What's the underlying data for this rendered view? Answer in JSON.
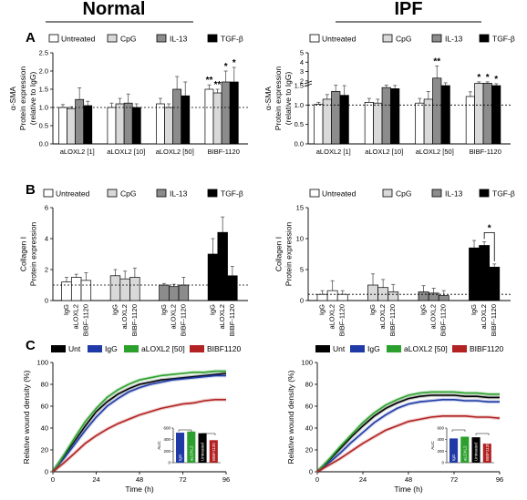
{
  "headers": {
    "normal": "Normal",
    "ipf": "IPF"
  },
  "panels": {
    "a": "A",
    "b": "B",
    "c": "C"
  },
  "legend_ab": [
    {
      "label": "Untreated",
      "color": "#ffffff"
    },
    {
      "label": "CpG",
      "color": "#d9d9d9"
    },
    {
      "label": "IL-13",
      "color": "#8c8c8c"
    },
    {
      "label": "TGF-β",
      "color": "#000000"
    }
  ],
  "legend_c": [
    {
      "label": "Unt",
      "color": "#000000"
    },
    {
      "label": "IgG",
      "color": "#1f3aa6"
    },
    {
      "label": "aLOXL2 [50]",
      "color": "#2ca02c"
    },
    {
      "label": "BIBF1120",
      "color": "#b22222"
    }
  ],
  "chart_data": [
    {
      "id": "a_normal",
      "type": "bar",
      "ylabel_lines": [
        "α-SMA",
        "Protein expression",
        "(relative to IgG)"
      ],
      "ylim": [
        0,
        2.5
      ],
      "yticks": [
        "0.0",
        "0.5",
        "1.0",
        "1.5",
        "2.0",
        "2.5"
      ],
      "categories": [
        "aLOXL2 [1]",
        "aLOXL2 [10]",
        "aLOXL2 [50]",
        "BIBF-1120"
      ],
      "series": [
        {
          "name": "Untreated",
          "values": [
            1.0,
            1.0,
            1.1,
            1.5
          ],
          "err": [
            0.08,
            0.12,
            0.15,
            0.12
          ]
        },
        {
          "name": "CpG",
          "values": [
            0.97,
            1.1,
            1.0,
            1.4
          ],
          "err": [
            0.05,
            0.15,
            0.1,
            0.1
          ]
        },
        {
          "name": "IL-13",
          "values": [
            1.22,
            1.12,
            1.5,
            1.7
          ],
          "err": [
            0.32,
            0.25,
            0.35,
            0.3
          ]
        },
        {
          "name": "TGF-β",
          "values": [
            1.05,
            1.0,
            1.32,
            1.7
          ],
          "err": [
            0.12,
            0.1,
            0.38,
            0.4
          ]
        }
      ],
      "stars": [
        {
          "cat": 3,
          "series": 0,
          "text": "**"
        },
        {
          "cat": 3,
          "series": 1,
          "text": "**"
        },
        {
          "cat": 3,
          "series": 2,
          "text": "*"
        },
        {
          "cat": 3,
          "series": 3,
          "text": "*"
        }
      ],
      "refline": 1.0
    },
    {
      "id": "a_ipf",
      "type": "bar",
      "ylabel_lines": [
        "α-SMA",
        "Protein expression",
        "(relative to IgG)"
      ],
      "ylim": [
        0,
        5
      ],
      "axis_break": 1.5,
      "yticks": [
        "0.0",
        "0.5",
        "1.0",
        "1.5",
        "2",
        "3",
        "4",
        "5"
      ],
      "categories": [
        "aLOXL2 [1]",
        "aLOXL2 [10]",
        "aLOXL2 [50]",
        "BIBF-1120"
      ],
      "series": [
        {
          "name": "Untreated",
          "values": [
            1.02,
            1.07,
            1.05,
            1.22
          ],
          "err": [
            0.05,
            0.1,
            0.12,
            0.12
          ]
        },
        {
          "name": "CpG",
          "values": [
            1.15,
            1.05,
            1.15,
            1.75
          ],
          "err": [
            0.12,
            0.1,
            0.2,
            0.15
          ]
        },
        {
          "name": "IL-13",
          "values": [
            1.35,
            1.45,
            2.3,
            1.75
          ],
          "err": [
            0.2,
            0.1,
            1.3,
            0.15
          ]
        },
        {
          "name": "TGF-β",
          "values": [
            1.25,
            1.42,
            1.5,
            1.5
          ],
          "err": [
            0.25,
            0.1,
            0.3,
            0.2
          ]
        }
      ],
      "stars": [
        {
          "cat": 2,
          "series": 2,
          "text": "**"
        },
        {
          "cat": 3,
          "series": 1,
          "text": "*"
        },
        {
          "cat": 3,
          "series": 2,
          "text": "*"
        },
        {
          "cat": 3,
          "series": 3,
          "text": "*"
        }
      ],
      "refline": 1.0
    },
    {
      "id": "b_normal",
      "type": "bar",
      "ylabel_lines": [
        "Collagen I",
        "Protein expression"
      ],
      "ylim": [
        0,
        6
      ],
      "yticks": [
        "0",
        "2",
        "4",
        "6"
      ],
      "groups": [
        "Untreated",
        "CpG",
        "IL-13",
        "TGF-β"
      ],
      "categories": [
        "IgG",
        "aLOXL2",
        "BIBF-1120"
      ],
      "values": [
        [
          1.2,
          1.5,
          1.3
        ],
        [
          1.6,
          1.4,
          1.5
        ],
        [
          1.0,
          0.9,
          1.0
        ],
        [
          3.0,
          4.4,
          1.6
        ]
      ],
      "err": [
        [
          0.3,
          0.2,
          0.5
        ],
        [
          0.4,
          0.5,
          0.6
        ],
        [
          0.1,
          0.15,
          0.5
        ],
        [
          1.0,
          1.0,
          0.6
        ]
      ],
      "refline": 1.0
    },
    {
      "id": "b_ipf",
      "type": "bar",
      "ylabel_lines": [
        "Collagen I",
        "Protein expression"
      ],
      "ylim": [
        0,
        15
      ],
      "yticks": [
        "0",
        "5",
        "10",
        "15"
      ],
      "groups": [
        "Untreated",
        "CpG",
        "IL-13",
        "TGF-β"
      ],
      "categories": [
        "IgG",
        "aLOXL2",
        "BIBF-1120"
      ],
      "values": [
        [
          1.0,
          1.6,
          1.0
        ],
        [
          2.5,
          2.1,
          1.4
        ],
        [
          1.4,
          1.2,
          0.8
        ],
        [
          8.5,
          8.9,
          5.4
        ]
      ],
      "err": [
        [
          0.6,
          1.6,
          0.6
        ],
        [
          1.8,
          1.3,
          1.2
        ],
        [
          1.0,
          0.8,
          0.8
        ],
        [
          1.2,
          0.6,
          0.5
        ]
      ],
      "bracket": {
        "from": 1,
        "to": 2,
        "group": 3,
        "text": "*"
      },
      "refline": 1.0
    },
    {
      "id": "c_normal",
      "type": "line",
      "xlabel": "Time (h)",
      "ylabel": "Relative wound density (%)",
      "xlim": [
        0,
        96
      ],
      "ylim": [
        0,
        100
      ],
      "xticks": [
        "0",
        "24",
        "48",
        "72",
        "96"
      ],
      "yticks": [
        "0",
        "20",
        "40",
        "60",
        "80",
        "100"
      ],
      "series": [
        {
          "name": "Unt",
          "color": "#000000",
          "x": [
            0,
            6,
            12,
            18,
            24,
            30,
            36,
            42,
            48,
            54,
            60,
            66,
            72,
            78,
            84,
            90,
            96
          ],
          "y": [
            0,
            14,
            28,
            42,
            55,
            64,
            71,
            76,
            80,
            82,
            84,
            85,
            86,
            87,
            88,
            89,
            90
          ]
        },
        {
          "name": "IgG",
          "color": "#1f3aa6",
          "x": [
            0,
            6,
            12,
            18,
            24,
            30,
            36,
            42,
            48,
            54,
            60,
            66,
            72,
            78,
            84,
            90,
            96
          ],
          "y": [
            0,
            12,
            25,
            38,
            50,
            60,
            67,
            73,
            77,
            80,
            82,
            84,
            85,
            86,
            87,
            88,
            88
          ]
        },
        {
          "name": "aLOXL2 [50]",
          "color": "#2ca02c",
          "x": [
            0,
            6,
            12,
            18,
            24,
            30,
            36,
            42,
            48,
            54,
            60,
            66,
            72,
            78,
            84,
            90,
            96
          ],
          "y": [
            0,
            15,
            31,
            46,
            58,
            68,
            75,
            80,
            84,
            86,
            88,
            89,
            90,
            91,
            91,
            92,
            92
          ]
        },
        {
          "name": "BIBF1120",
          "color": "#b22222",
          "x": [
            0,
            6,
            12,
            18,
            24,
            30,
            36,
            42,
            48,
            54,
            60,
            66,
            72,
            78,
            84,
            90,
            96
          ],
          "y": [
            0,
            8,
            17,
            26,
            33,
            39,
            44,
            48,
            52,
            55,
            58,
            60,
            62,
            63,
            65,
            66,
            66
          ]
        }
      ],
      "inset": {
        "ylabel": "AUC",
        "yticks": [
          "0",
          "200",
          "400",
          "600"
        ],
        "ymax": 600,
        "labels": [
          "IgG",
          "aLOXL2",
          "Untreated",
          "BIBF1120"
        ],
        "values": [
          520,
          540,
          510,
          390
        ],
        "colors": [
          "#1f3aa6",
          "#2ca02c",
          "#000000",
          "#b22222"
        ]
      }
    },
    {
      "id": "c_ipf",
      "type": "line",
      "xlabel": "Time (h)",
      "ylabel": "Relative wound density (%)",
      "xlim": [
        0,
        96
      ],
      "ylim": [
        0,
        100
      ],
      "xticks": [
        "0",
        "24",
        "48",
        "72",
        "96"
      ],
      "yticks": [
        "0",
        "20",
        "40",
        "60",
        "80",
        "100"
      ],
      "series": [
        {
          "name": "Unt",
          "color": "#000000",
          "x": [
            0,
            6,
            12,
            18,
            24,
            30,
            36,
            42,
            48,
            54,
            60,
            66,
            72,
            78,
            84,
            90,
            96
          ],
          "y": [
            0,
            10,
            21,
            32,
            42,
            51,
            58,
            63,
            67,
            69,
            70,
            70,
            70,
            69,
            69,
            68,
            68
          ]
        },
        {
          "name": "IgG",
          "color": "#1f3aa6",
          "x": [
            0,
            6,
            12,
            18,
            24,
            30,
            36,
            42,
            48,
            54,
            60,
            66,
            72,
            78,
            84,
            90,
            96
          ],
          "y": [
            0,
            8,
            17,
            27,
            36,
            45,
            52,
            58,
            62,
            64,
            65,
            66,
            66,
            65,
            65,
            64,
            64
          ]
        },
        {
          "name": "aLOXL2 [50]",
          "color": "#2ca02c",
          "x": [
            0,
            6,
            12,
            18,
            24,
            30,
            36,
            42,
            48,
            54,
            60,
            66,
            72,
            78,
            84,
            90,
            96
          ],
          "y": [
            0,
            11,
            23,
            34,
            45,
            54,
            61,
            66,
            70,
            72,
            73,
            73,
            73,
            72,
            72,
            71,
            71
          ]
        },
        {
          "name": "BIBF1120",
          "color": "#b22222",
          "x": [
            0,
            6,
            12,
            18,
            24,
            30,
            36,
            42,
            48,
            54,
            60,
            66,
            72,
            78,
            84,
            90,
            96
          ],
          "y": [
            0,
            6,
            12,
            19,
            26,
            32,
            38,
            42,
            46,
            48,
            50,
            51,
            51,
            51,
            50,
            50,
            49
          ]
        }
      ],
      "inset": {
        "ylabel": "AUC",
        "yticks": [
          "0",
          "200",
          "400",
          "600"
        ],
        "ymax": 600,
        "labels": [
          "IgG",
          "aLOXL2",
          "Untreated",
          "BIBF1120"
        ],
        "values": [
          420,
          450,
          440,
          330
        ],
        "colors": [
          "#1f3aa6",
          "#2ca02c",
          "#000000",
          "#b22222"
        ]
      }
    }
  ]
}
